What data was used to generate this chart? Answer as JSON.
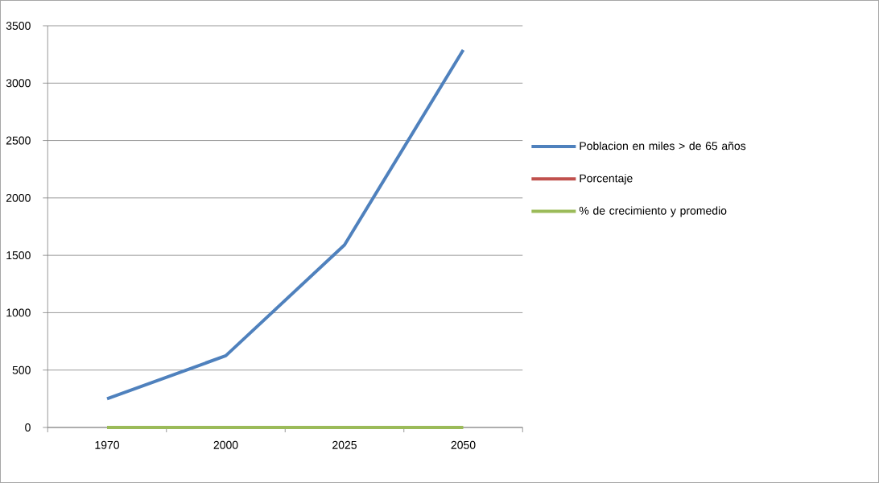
{
  "chart_data": {
    "type": "line",
    "categories": [
      "1970",
      "2000",
      "2025",
      "2050"
    ],
    "series": [
      {
        "name": "Poblacion en miles > de 65 años",
        "color": "#4f81bd",
        "values": [
          250,
          625,
          1590,
          3290
        ]
      },
      {
        "name": "Porcentaje",
        "color": "#c0504d",
        "values": [
          null,
          null,
          null,
          null
        ]
      },
      {
        "name": "% de crecimiento y promedio",
        "color": "#9bbb59",
        "values": [
          0,
          0,
          0,
          0
        ]
      }
    ],
    "ylim": [
      0,
      3500
    ],
    "yticks": [
      0,
      500,
      1000,
      1500,
      2000,
      2500,
      3000,
      3500
    ],
    "grid": "y",
    "legend": "right",
    "marker": "none",
    "line_style": "solid"
  }
}
